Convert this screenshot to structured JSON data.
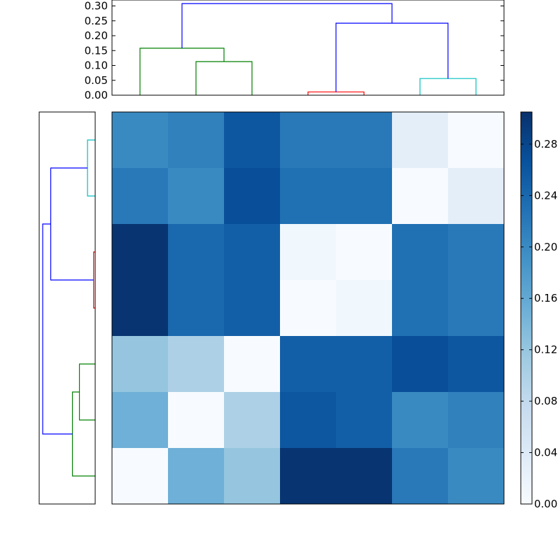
{
  "chart_data": [
    {
      "type": "dendrogram",
      "orientation": "top",
      "ylim": [
        0,
        0.32
      ],
      "yticks": [
        "0.00",
        "0.05",
        "0.10",
        "0.15",
        "0.20",
        "0.25",
        "0.30"
      ],
      "ytick_values": [
        0,
        0.05,
        0.1,
        0.15,
        0.2,
        0.25,
        0.3
      ],
      "leaves": 7,
      "links": [
        {
          "left": 1.5,
          "right": 2.5,
          "left_h": 0.0,
          "right_h": 0.0,
          "height": 0.113,
          "color": "#008000"
        },
        {
          "left": 0.5,
          "right": 2.0,
          "left_h": 0.0,
          "right_h": 0.113,
          "height": 0.158,
          "color": "#008000"
        },
        {
          "left": 3.5,
          "right": 4.5,
          "left_h": 0.0,
          "right_h": 0.0,
          "height": 0.011,
          "color": "#ff0000"
        },
        {
          "left": 5.5,
          "right": 6.5,
          "left_h": 0.0,
          "right_h": 0.0,
          "height": 0.056,
          "color": "#00bfbf"
        },
        {
          "left": 4.0,
          "right": 6.0,
          "left_h": 0.011,
          "right_h": 0.056,
          "height": 0.242,
          "color": "#0000ff"
        },
        {
          "left": 1.25,
          "right": 5.0,
          "left_h": 0.158,
          "right_h": 0.242,
          "height": 0.308,
          "color": "#0000ff"
        }
      ]
    },
    {
      "type": "dendrogram",
      "orientation": "left",
      "leaves": 7,
      "xlim": [
        0,
        0.32
      ],
      "links": [
        {
          "top": 0.5,
          "bottom": 1.5,
          "top_h": 0.0,
          "bottom_h": 0.0,
          "height": 0.044,
          "color": "#00bfbf"
        },
        {
          "top": 2.5,
          "bottom": 3.5,
          "top_h": 0.0,
          "bottom_h": 0.0,
          "height": 0.009,
          "color": "#ff0000"
        },
        {
          "top": 1.0,
          "bottom": 3.0,
          "top_h": 0.044,
          "bottom_h": 0.009,
          "height": 0.254,
          "color": "#0000ff"
        },
        {
          "top": 4.5,
          "bottom": 5.5,
          "top_h": 0.0,
          "bottom_h": 0.0,
          "height": 0.09,
          "color": "#008000"
        },
        {
          "top": 5.0,
          "bottom": 6.5,
          "top_h": 0.09,
          "bottom_h": 0.0,
          "height": 0.13,
          "color": "#008000"
        },
        {
          "top": 2.0,
          "bottom": 5.75,
          "top_h": 0.254,
          "bottom_h": 0.13,
          "height": 0.3,
          "color": "#0000ff"
        }
      ]
    },
    {
      "type": "heatmap",
      "colormap": "Blues",
      "vmin": 0,
      "vmax": 0.305,
      "values": [
        [
          0.2,
          0.21,
          0.26,
          0.22,
          0.22,
          0.03,
          0.0
        ],
        [
          0.22,
          0.2,
          0.27,
          0.23,
          0.23,
          0.0,
          0.03
        ],
        [
          0.3,
          0.24,
          0.25,
          0.01,
          0.0,
          0.23,
          0.22
        ],
        [
          0.3,
          0.24,
          0.25,
          0.0,
          0.01,
          0.23,
          0.22
        ],
        [
          0.12,
          0.1,
          0.0,
          0.25,
          0.25,
          0.27,
          0.26
        ],
        [
          0.15,
          0.0,
          0.1,
          0.26,
          0.25,
          0.2,
          0.21
        ],
        [
          0.0,
          0.15,
          0.12,
          0.3,
          0.3,
          0.22,
          0.2
        ]
      ]
    },
    {
      "type": "colorbar",
      "colormap": "Blues",
      "range": [
        0,
        0.305
      ],
      "ticks": [
        "0.00",
        "0.04",
        "0.08",
        "0.12",
        "0.16",
        "0.20",
        "0.24",
        "0.28"
      ],
      "tick_values": [
        0,
        0.04,
        0.08,
        0.12,
        0.16,
        0.2,
        0.24,
        0.28
      ]
    }
  ]
}
